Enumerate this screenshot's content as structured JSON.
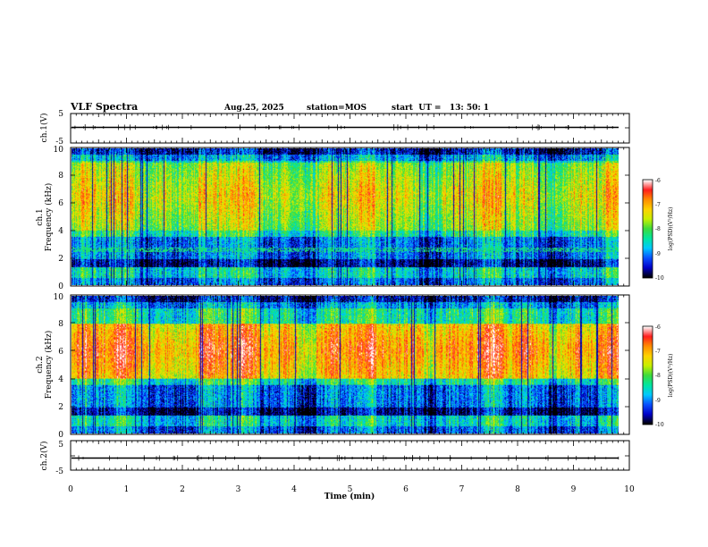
{
  "chart_data": {
    "type": "heatmap",
    "title": "VLF Spectra",
    "date": "Aug.25, 2025",
    "station": "station=MOS",
    "start_ut": "start  UT =   13: 50: 1",
    "xlabel": "Time  (min)",
    "xlim": [
      0,
      10
    ],
    "x_ticks": [
      "0",
      "1",
      "2",
      "3",
      "4",
      "5",
      "6",
      "7",
      "8",
      "9",
      "10"
    ],
    "panels": [
      {
        "kind": "waveform",
        "ylabel": "ch.1(V)",
        "ylim": [
          -5,
          5
        ],
        "y_ticks": [
          "5",
          "-5"
        ],
        "baseline_v": 0
      },
      {
        "kind": "spectrogram",
        "ylabel_top": "ch.1",
        "ylabel": "Frequency  (kHz)",
        "ylim": [
          0,
          10
        ],
        "y_ticks": [
          "0",
          "2",
          "4",
          "6",
          "8",
          "10"
        ],
        "colorbar_label": "log(PSD)(V²/Hz)",
        "colorbar_range": [
          -10,
          -6
        ],
        "colorbar_ticks": [
          "-6",
          "-7",
          "-8",
          "-9",
          "-10"
        ],
        "intense_band_khz": [
          4,
          9
        ],
        "gap_band_khz": [
          0,
          3.5
        ]
      },
      {
        "kind": "spectrogram",
        "ylabel_top": "ch.2",
        "ylabel": "Frequency  (kHz)",
        "ylim": [
          0,
          10
        ],
        "y_ticks": [
          "0",
          "2",
          "4",
          "6",
          "8",
          "10"
        ],
        "colorbar_label": "log(PSD)(V²/Hz)",
        "colorbar_range": [
          -10,
          -6
        ],
        "colorbar_ticks": [
          "-6",
          "-7",
          "-8",
          "-9",
          "-10"
        ],
        "intense_band_khz": [
          4,
          8
        ],
        "gap_band_khz": [
          0,
          3.5
        ]
      },
      {
        "kind": "waveform",
        "ylabel": "ch.2(V)",
        "ylim": [
          -5,
          5
        ],
        "y_ticks": [
          "5",
          "-5"
        ],
        "baseline_v": 0
      }
    ],
    "data_end_min": 9.83,
    "colors": {
      "scale": [
        "#000000",
        "#0000c8",
        "#0a50ff",
        "#00c8ff",
        "#00e6a0",
        "#3cdc3c",
        "#c8f000",
        "#ffd200",
        "#ff8c00",
        "#ff1e1e",
        "#ffffff"
      ]
    }
  }
}
